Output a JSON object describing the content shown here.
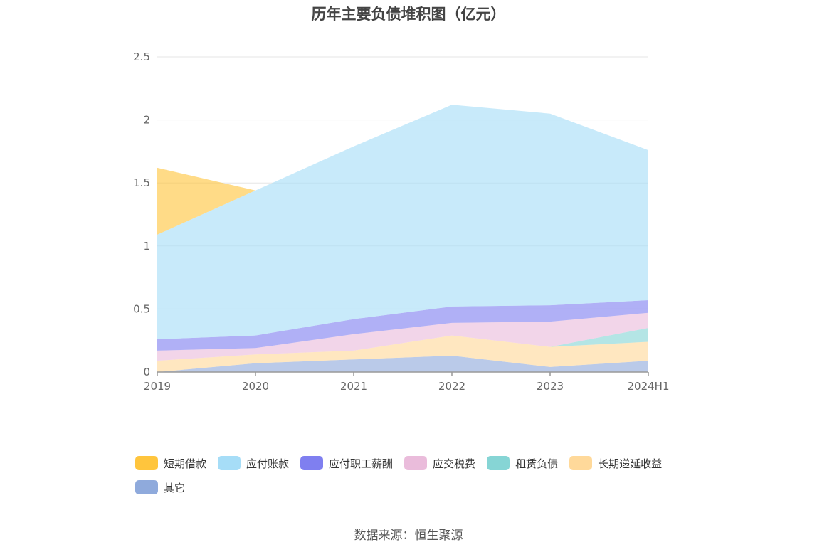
{
  "chart_data": {
    "type": "area",
    "stacked": true,
    "title": "历年主要负债堆积图（亿元）",
    "categories": [
      "2019",
      "2020",
      "2021",
      "2022",
      "2023",
      "2024H1"
    ],
    "ylim": [
      0,
      2.5
    ],
    "yticks": [
      "0",
      "0.5",
      "1",
      "1.5",
      "2",
      "2.5"
    ],
    "grid": true,
    "legend_position": "bottom",
    "series": [
      {
        "name": "其它",
        "color": "#8faadc",
        "values": [
          0.0,
          0.07,
          0.1,
          0.13,
          0.04,
          0.09
        ]
      },
      {
        "name": "长期递延收益",
        "color": "#ffd99a",
        "values": [
          0.09,
          0.07,
          0.07,
          0.16,
          0.16,
          0.15
        ]
      },
      {
        "name": "租赁负债",
        "color": "#86d5d5",
        "values": [
          0.0,
          0.0,
          0.0,
          0.0,
          0.0,
          0.11
        ]
      },
      {
        "name": "应交税费",
        "color": "#eabcdb",
        "values": [
          0.08,
          0.05,
          0.13,
          0.1,
          0.2,
          0.12
        ]
      },
      {
        "name": "应付职工薪酬",
        "color": "#7f7ff0",
        "values": [
          0.09,
          0.1,
          0.12,
          0.13,
          0.13,
          0.1
        ]
      },
      {
        "name": "应付账款",
        "color": "#a6ddf7",
        "values": [
          0.83,
          1.15,
          1.37,
          1.6,
          1.52,
          1.19
        ]
      },
      {
        "name": "短期借款",
        "color": "#ffc53d",
        "values": [
          0.53,
          0.0,
          0.0,
          0.0,
          0.0,
          0.0
        ]
      }
    ],
    "legend_order": [
      "短期借款",
      "应付账款",
      "应付职工薪酬",
      "应交税费",
      "租赁负债",
      "长期递延收益",
      "其它"
    ]
  },
  "source": "数据来源：恒生聚源"
}
